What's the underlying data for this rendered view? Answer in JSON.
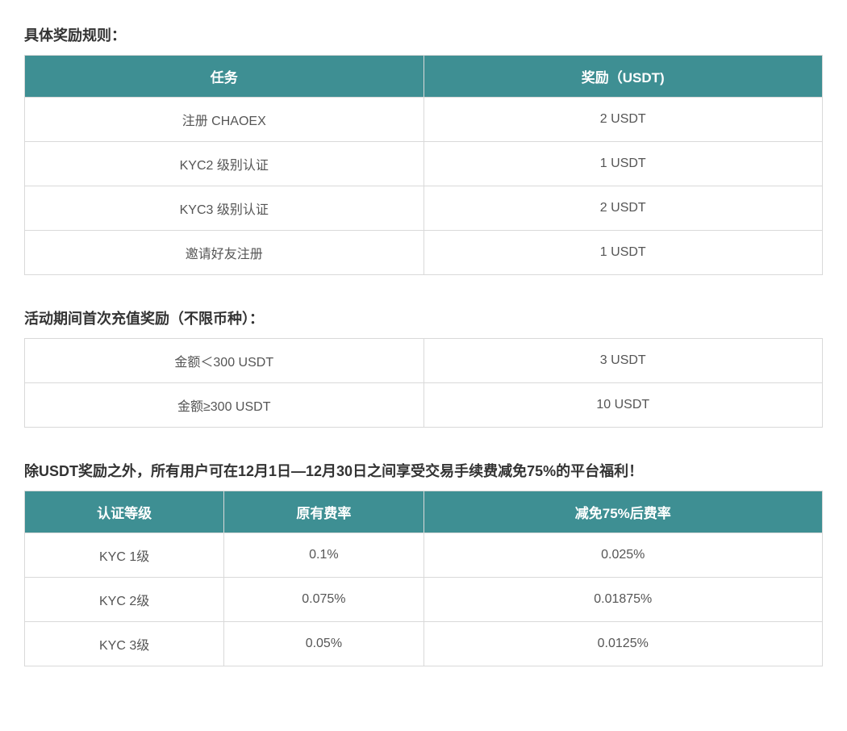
{
  "section1": {
    "title": "具体奖励规则：",
    "headers": [
      "任务",
      "奖励（USDT)"
    ],
    "rows": [
      [
        "注册 CHAOEX",
        "2 USDT"
      ],
      [
        "KYC2 级别认证",
        "1 USDT"
      ],
      [
        "KYC3 级别认证",
        "2 USDT"
      ],
      [
        "邀请好友注册",
        "1 USDT"
      ]
    ]
  },
  "section2": {
    "title": "活动期间首次充值奖励（不限币种）：",
    "rows": [
      [
        "金额＜300 USDT",
        "3 USDT"
      ],
      [
        "金额≥300 USDT",
        "10 USDT"
      ]
    ]
  },
  "section3": {
    "title": "除USDT奖励之外，所有用户可在12月1日—12月30日之间享受交易手续费减免75%的平台福利！",
    "headers": [
      "认证等级",
      "原有费率",
      "减免75%后费率"
    ],
    "rows": [
      [
        "KYC 1级",
        "0.1%",
        "0.025%"
      ],
      [
        "KYC 2级",
        "0.075%",
        "0.01875%"
      ],
      [
        "KYC 3级",
        "0.05%",
        "0.0125%"
      ]
    ],
    "col_widths": [
      "25%",
      "25%",
      "50%"
    ]
  },
  "colors": {
    "header_bg": "#3e8f93",
    "header_text": "#ffffff",
    "cell_bg": "#ffffff",
    "cell_text": "#555555",
    "border": "#d9d9d9",
    "title_text": "#333333",
    "page_bg": "#ffffff"
  },
  "typography": {
    "title_fontsize": 18,
    "header_fontsize": 17,
    "cell_fontsize": 16
  }
}
